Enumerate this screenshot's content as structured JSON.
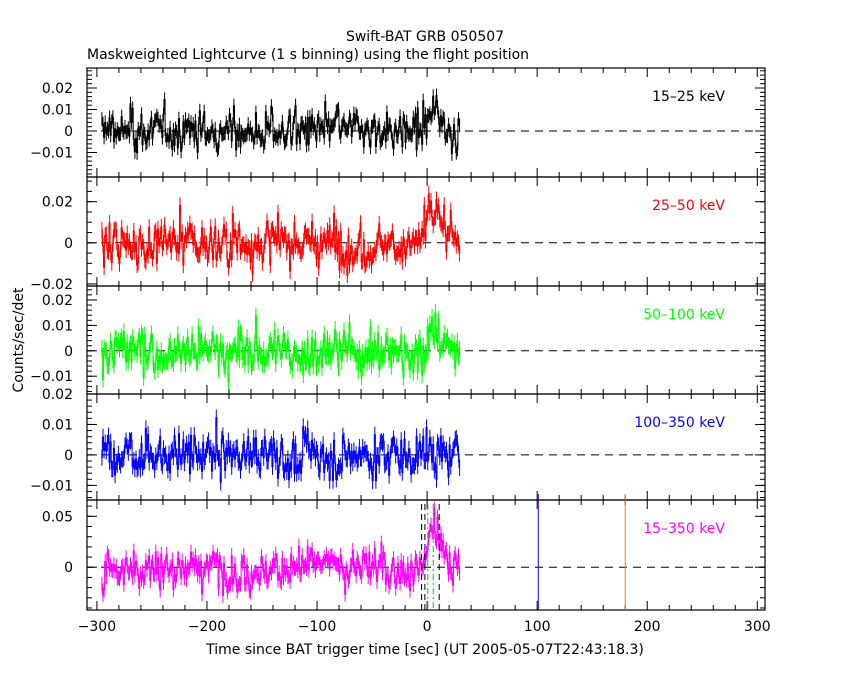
{
  "chart_data": {
    "type": "line",
    "title": "Swift-BAT GRB 050507",
    "subtitle": "Maskweighted Lightcurve (1 s binning) using the flight position",
    "xlabel": "Time since BAT trigger time [sec] (UT 2005-05-07T22:43:18.3)",
    "ylabel": "Counts/sec/det",
    "xlim": [
      -309,
      307
    ],
    "xticks": [
      -300,
      -200,
      -100,
      0,
      100,
      200,
      300
    ],
    "xtick_labels": [
      "−300",
      "−200",
      "−100",
      "0",
      "100",
      "200",
      "300"
    ],
    "data_time_range": [
      -296,
      29
    ],
    "binning_sec": 1,
    "panels": [
      {
        "label": "15–25 keV",
        "color": "#000000",
        "ylim": [
          -0.0214,
          0.0293
        ],
        "yticks": [
          -0.01,
          0,
          0.01,
          0.02
        ],
        "ytick_labels": [
          "−0.01",
          "0",
          "0.01",
          "0.02"
        ],
        "minor": 0.002,
        "noise_sigma": 0.0055,
        "burst_peak": 0.007
      },
      {
        "label": "25–50 keV",
        "color": "#ff0000",
        "ylim": [
          -0.021,
          0.032
        ],
        "yticks": [
          -0.02,
          0,
          0.02
        ],
        "ytick_labels": [
          "−0.02",
          "0",
          "0.02"
        ],
        "minor": 0.005,
        "noise_sigma": 0.0065,
        "burst_peak": 0.014
      },
      {
        "label": "50–100 keV",
        "color": "#00ff00",
        "ylim": [
          -0.017,
          0.0255
        ],
        "yticks": [
          -0.01,
          0,
          0.01,
          0.02
        ],
        "ytick_labels": [
          "−0.01",
          "0",
          "0.01",
          "0.02"
        ],
        "minor": 0.002,
        "noise_sigma": 0.0055,
        "burst_peak": 0.01
      },
      {
        "label": "100–350 keV",
        "color": "#0000ff",
        "ylim": [
          -0.0148,
          0.02
        ],
        "yticks": [
          -0.01,
          0,
          0.01,
          0.02
        ],
        "ytick_labels": [
          "−0.01",
          "0",
          "0.01",
          "0.02"
        ],
        "minor": 0.002,
        "noise_sigma": 0.0045,
        "burst_peak": 0.002
      },
      {
        "label": "15–350 keV",
        "color": "#ff00ff",
        "ylim": [
          -0.042,
          0.066
        ],
        "yticks": [
          0,
          0.05
        ],
        "ytick_labels": [
          "0",
          "0.05"
        ],
        "minor": 0.01,
        "noise_sigma": 0.012,
        "burst_peak": 0.035
      }
    ],
    "markers": [
      {
        "x": -5,
        "style": "dashed",
        "color": "#000000"
      },
      {
        "x": -2,
        "style": "dashed",
        "color": "#000000"
      },
      {
        "x": 11,
        "style": "dashed",
        "color": "#000000"
      },
      {
        "x": 0.6,
        "style": "dashdot",
        "color": "#00cc00"
      },
      {
        "x": 5.6,
        "style": "dashdot",
        "color": "#00cc00"
      },
      {
        "x": 101,
        "style": "solid",
        "color": "#0000ff"
      },
      {
        "x": 180,
        "style": "solid",
        "color": "#e08020"
      }
    ]
  }
}
